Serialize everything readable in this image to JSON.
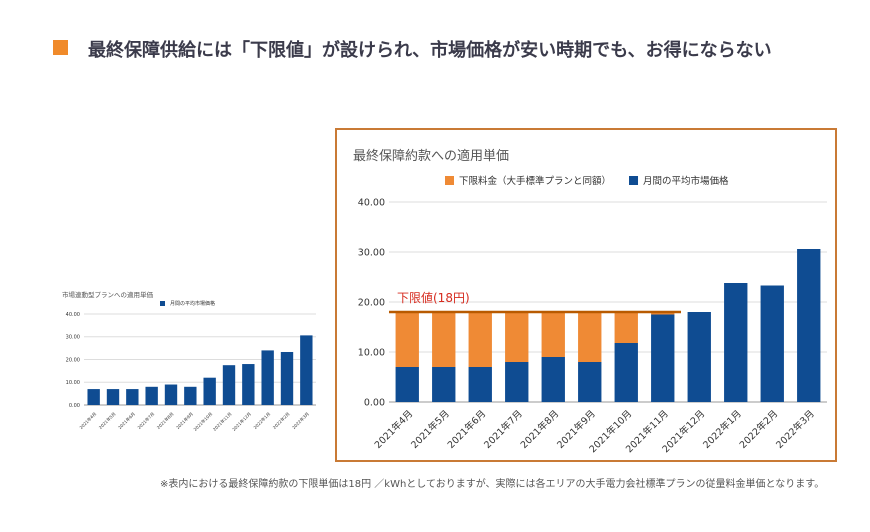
{
  "page": {
    "title": "最終保障供給には「下限値」が設けられ、市場価格が安い時期でも、お得にならない",
    "footnote": "※表内における最終保障約款の下限単価は18円 ／kWhとしておりますが、実際には各エリアの大手電力会社標準プランの従量料金単価となります。",
    "accent_color": "#f08a2a"
  },
  "chart_data": [
    {
      "type": "bar",
      "title": "市場連動型プランへの適用単価",
      "categories": [
        "2021年4月",
        "2021年5月",
        "2021年6月",
        "2021年7月",
        "2021年8月",
        "2021年9月",
        "2021年10月",
        "2021年11月",
        "2021年12月",
        "2022年1月",
        "2022年2月",
        "2022年3月"
      ],
      "series": [
        {
          "name": "月間の平均市場価格",
          "color": "#0f4c92",
          "values": [
            7,
            7,
            7,
            8,
            9,
            8,
            12,
            17.5,
            18,
            24,
            23.3,
            30.6
          ]
        }
      ],
      "yticks": [
        "40.00",
        "30.00",
        "20.00",
        "10.00",
        "0.00"
      ],
      "ylim": [
        0,
        40
      ],
      "legend": "top"
    },
    {
      "type": "bar",
      "stacked": true,
      "title": "最終保障約款への適用単価",
      "categories": [
        "2021年4月",
        "2021年5月",
        "2021年6月",
        "2021年7月",
        "2021年8月",
        "2021年9月",
        "2021年10月",
        "2021年11月",
        "2021年12月",
        "2022年1月",
        "2022年2月",
        "2022年3月"
      ],
      "series": [
        {
          "name": "月間の平均市場価格",
          "color": "#0f4c92",
          "values": [
            7,
            7,
            7,
            8,
            9,
            8,
            11.8,
            17.5,
            18,
            23.8,
            23.3,
            30.6
          ]
        },
        {
          "name": "下限料金（大手標準プランと同額）",
          "color": "#ef8a35",
          "values": [
            11,
            11,
            11,
            10,
            9,
            10,
            6.2,
            0.5,
            0,
            0,
            0,
            0
          ]
        }
      ],
      "legend_order": [
        "下限料金（大手標準プランと同額）",
        "月間の平均市場価格"
      ],
      "yticks": [
        "40.00",
        "30.00",
        "20.00",
        "10.00",
        "0.00"
      ],
      "ylim": [
        0,
        40
      ],
      "legend": "top",
      "annotation": {
        "label": "下限値(18円)",
        "value": 18,
        "color": "#b85a00",
        "label_color": "#d62b1f"
      }
    }
  ]
}
